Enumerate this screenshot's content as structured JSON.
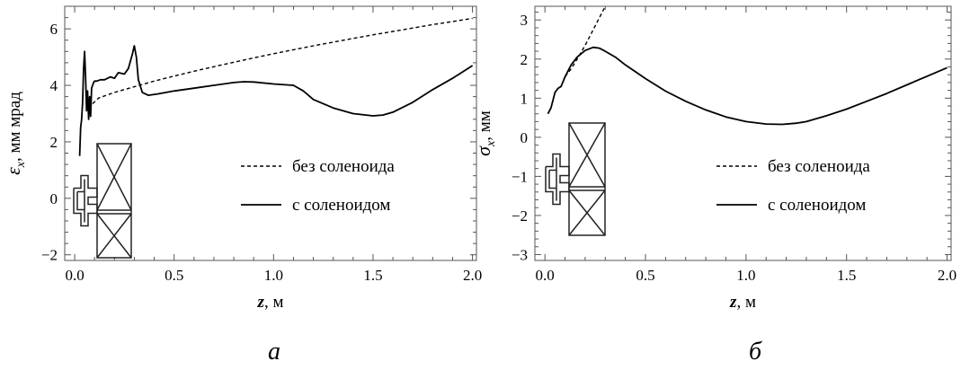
{
  "chart_data": [
    {
      "type": "line",
      "panel_label": "а",
      "xlabel_var": "z",
      "xlabel_unit": ", м",
      "ylabel_var": "ε",
      "ylabel_sub": "x",
      "ylabel_unit": ", мм мрад",
      "xlim": [
        -0.05,
        2.02
      ],
      "ylim": [
        -2.2,
        6.8
      ],
      "x_ticks": [
        0.0,
        0.5,
        1.0,
        1.5,
        2.0
      ],
      "x_tick_labels": [
        "0.0",
        "0.5",
        "1.0",
        "1.5",
        "2.0"
      ],
      "y_ticks": [
        -2,
        0,
        2,
        4,
        6
      ],
      "y_tick_labels": [
        "−2",
        "0",
        "2",
        "4",
        "6"
      ],
      "legend_position": "right-middle",
      "series": [
        {
          "name": "без соленоида",
          "style": "dashed",
          "x": [
            0.09,
            0.12,
            0.2,
            0.3,
            0.4,
            0.5,
            0.6,
            0.7,
            0.8,
            0.9,
            1.0,
            1.1,
            1.2,
            1.3,
            1.4,
            1.5,
            1.6,
            1.7,
            1.8,
            1.9,
            2.0
          ],
          "y": [
            3.35,
            3.55,
            3.75,
            3.95,
            4.15,
            4.33,
            4.5,
            4.66,
            4.82,
            4.97,
            5.12,
            5.26,
            5.4,
            5.53,
            5.66,
            5.79,
            5.91,
            6.03,
            6.15,
            6.26,
            6.37
          ]
        },
        {
          "name": "с соленоидом",
          "style": "solid",
          "x": [
            0.025,
            0.03,
            0.035,
            0.04,
            0.045,
            0.05,
            0.055,
            0.06,
            0.065,
            0.07,
            0.075,
            0.08,
            0.085,
            0.09,
            0.095,
            0.1,
            0.11,
            0.13,
            0.15,
            0.18,
            0.2,
            0.22,
            0.25,
            0.27,
            0.29,
            0.3,
            0.31,
            0.32,
            0.34,
            0.37,
            0.42,
            0.5,
            0.6,
            0.7,
            0.8,
            0.85,
            0.9,
            1.0,
            1.1,
            1.15,
            1.2,
            1.3,
            1.4,
            1.5,
            1.55,
            1.6,
            1.7,
            1.8,
            1.9,
            2.0
          ],
          "y": [
            1.5,
            2.5,
            2.8,
            3.4,
            4.6,
            5.2,
            4.3,
            3.1,
            3.8,
            2.8,
            3.6,
            2.9,
            3.9,
            4.0,
            4.1,
            4.15,
            4.15,
            4.2,
            4.2,
            4.3,
            4.25,
            4.45,
            4.4,
            4.6,
            5.1,
            5.4,
            5.0,
            4.2,
            3.75,
            3.65,
            3.7,
            3.8,
            3.9,
            4.0,
            4.1,
            4.13,
            4.12,
            4.05,
            4.0,
            3.8,
            3.5,
            3.2,
            3.0,
            2.92,
            2.95,
            3.05,
            3.4,
            3.85,
            4.25,
            4.7
          ]
        }
      ]
    },
    {
      "type": "line",
      "panel_label": "б",
      "xlabel_var": "z",
      "xlabel_unit": ", м",
      "ylabel_var": "σ",
      "ylabel_sub": "x",
      "ylabel_unit": ", мм",
      "xlim": [
        -0.05,
        2.02
      ],
      "ylim": [
        -3.15,
        3.35
      ],
      "x_ticks": [
        0.0,
        0.5,
        1.0,
        1.5,
        2.0
      ],
      "x_tick_labels": [
        "0.0",
        "0.5",
        "1.0",
        "1.5",
        "2.0"
      ],
      "y_ticks": [
        -3,
        -2,
        -1,
        0,
        1,
        2,
        3
      ],
      "y_tick_labels": [
        "−3",
        "−2",
        "−1",
        "0",
        "1",
        "2",
        "3"
      ],
      "legend_position": "right-middle",
      "series": [
        {
          "name": "без соленоида",
          "style": "dashed",
          "x": [
            0.1,
            0.13,
            0.16,
            0.2,
            0.24,
            0.28,
            0.3
          ],
          "y": [
            1.55,
            1.75,
            2.0,
            2.35,
            2.75,
            3.15,
            3.35
          ]
        },
        {
          "name": "с соленоидом",
          "style": "solid",
          "x": [
            0.015,
            0.03,
            0.05,
            0.065,
            0.08,
            0.1,
            0.13,
            0.16,
            0.2,
            0.24,
            0.27,
            0.3,
            0.35,
            0.4,
            0.5,
            0.6,
            0.7,
            0.8,
            0.9,
            1.0,
            1.1,
            1.18,
            1.25,
            1.3,
            1.4,
            1.5,
            1.6,
            1.7,
            1.8,
            1.9,
            2.0
          ],
          "y": [
            0.6,
            0.75,
            1.15,
            1.25,
            1.3,
            1.55,
            1.85,
            2.05,
            2.22,
            2.3,
            2.28,
            2.2,
            2.05,
            1.85,
            1.5,
            1.18,
            0.92,
            0.7,
            0.52,
            0.4,
            0.34,
            0.33,
            0.36,
            0.4,
            0.55,
            0.72,
            0.92,
            1.12,
            1.34,
            1.56,
            1.78
          ]
        }
      ]
    }
  ]
}
